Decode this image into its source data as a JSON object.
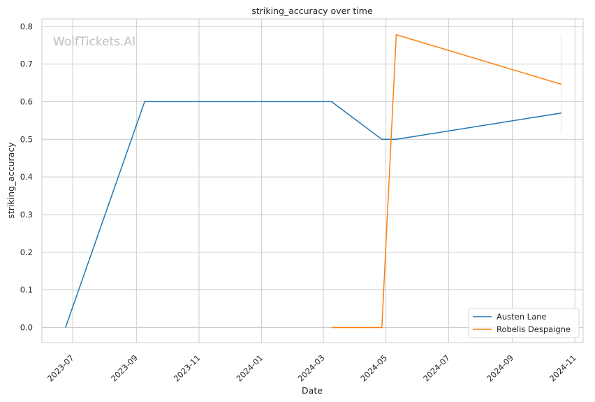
{
  "chart_data": {
    "type": "line",
    "title": "striking_accuracy over time",
    "xlabel": "Date",
    "ylabel": "striking_accuracy",
    "watermark": "WolfTickets.AI",
    "x_ticks": [
      "2023-07",
      "2023-09",
      "2023-11",
      "2024-01",
      "2024-03",
      "2024-05",
      "2024-07",
      "2024-09",
      "2024-11"
    ],
    "y_ticks": [
      "0.0",
      "0.1",
      "0.2",
      "0.3",
      "0.4",
      "0.5",
      "0.6",
      "0.7",
      "0.8"
    ],
    "ylim": [
      -0.04,
      0.82
    ],
    "xlim": [
      "2023-06-01",
      "2024-11-09"
    ],
    "grid": true,
    "legend_position": "lower-right",
    "series": [
      {
        "name": "Austen Lane",
        "color": "#1f77b4",
        "points": [
          {
            "x": "2023-06-24",
            "y": 0.0
          },
          {
            "x": "2023-09-09",
            "y": 0.6
          },
          {
            "x": "2024-03-09",
            "y": 0.6
          },
          {
            "x": "2024-04-27",
            "y": 0.5
          },
          {
            "x": "2024-05-11",
            "y": 0.5
          },
          {
            "x": "2024-10-19",
            "y": 0.57
          }
        ]
      },
      {
        "name": "Robelis Despaigne",
        "color": "#ff7f0e",
        "points": [
          {
            "x": "2024-03-09",
            "y": 0.0
          },
          {
            "x": "2024-04-27",
            "y": 0.0
          },
          {
            "x": "2024-05-11",
            "y": 0.778
          },
          {
            "x": "2024-10-19",
            "y": 0.646
          }
        ],
        "error_band": {
          "x": "2024-10-19",
          "low": 0.515,
          "high": 0.778
        }
      }
    ]
  }
}
